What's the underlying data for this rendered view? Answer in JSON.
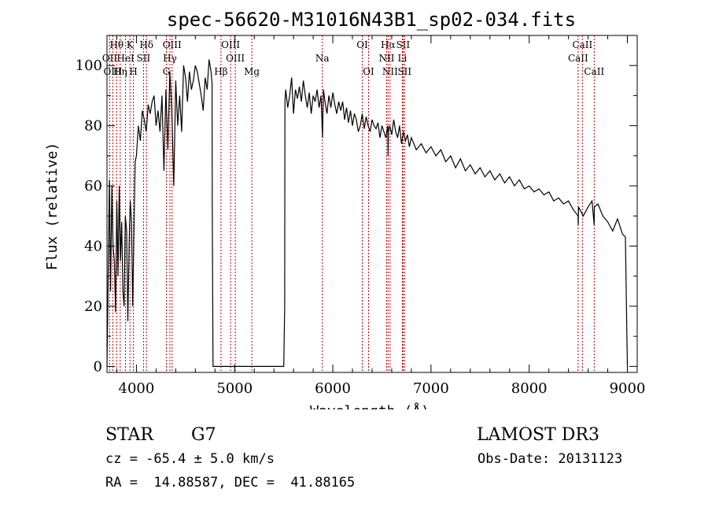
{
  "chart_data": {
    "type": "line",
    "title": "spec-56620-M31016N43B1_sp02-034.fits",
    "xlabel": "Wavelength (Å)",
    "ylabel": "Flux (relative)",
    "xlim": [
      3700,
      9100
    ],
    "ylim": [
      -2,
      110
    ],
    "x_ticks": [
      4000,
      5000,
      6000,
      7000,
      8000,
      9000
    ],
    "y_ticks": [
      0,
      20,
      40,
      60,
      80,
      100
    ],
    "series": [
      {
        "name": "flux",
        "x": [
          3700,
          3712,
          3725,
          3737,
          3750,
          3762,
          3775,
          3787,
          3800,
          3812,
          3825,
          3837,
          3850,
          3862,
          3875,
          3887,
          3900,
          3912,
          3925,
          3937,
          3950,
          3962,
          3975,
          3987,
          4000,
          4020,
          4040,
          4060,
          4080,
          4100,
          4120,
          4140,
          4160,
          4180,
          4200,
          4220,
          4240,
          4260,
          4280,
          4300,
          4320,
          4340,
          4360,
          4380,
          4400,
          4420,
          4440,
          4460,
          4480,
          4500,
          4520,
          4540,
          4560,
          4580,
          4600,
          4620,
          4640,
          4660,
          4680,
          4700,
          4720,
          4740,
          4760,
          4770,
          4772,
          4780,
          4800,
          4850,
          4900,
          5000,
          5100,
          5200,
          5300,
          5400,
          5500,
          5510,
          5512,
          5520,
          5540,
          5560,
          5580,
          5600,
          5620,
          5640,
          5660,
          5680,
          5700,
          5720,
          5740,
          5760,
          5780,
          5800,
          5820,
          5840,
          5860,
          5880,
          5895,
          5900,
          5905,
          5920,
          5940,
          5960,
          5980,
          6000,
          6020,
          6040,
          6060,
          6080,
          6100,
          6120,
          6140,
          6160,
          6180,
          6200,
          6220,
          6240,
          6260,
          6280,
          6300,
          6320,
          6340,
          6360,
          6380,
          6400,
          6420,
          6440,
          6460,
          6480,
          6500,
          6520,
          6540,
          6560,
          6563,
          6566,
          6580,
          6600,
          6620,
          6640,
          6660,
          6680,
          6700,
          6720,
          6740,
          6760,
          6780,
          6800,
          6850,
          6900,
          6950,
          7000,
          7050,
          7100,
          7150,
          7200,
          7250,
          7300,
          7350,
          7400,
          7450,
          7500,
          7550,
          7600,
          7650,
          7700,
          7750,
          7800,
          7850,
          7900,
          7950,
          8000,
          8050,
          8100,
          8150,
          8200,
          8250,
          8300,
          8350,
          8400,
          8450,
          8498,
          8500,
          8502,
          8550,
          8600,
          8640,
          8662,
          8664,
          8700,
          8750,
          8800,
          8850,
          8900,
          8950,
          8980,
          8995,
          9000,
          9003
        ],
        "values": [
          0,
          30,
          62,
          25,
          60,
          40,
          35,
          18,
          55,
          30,
          60,
          35,
          48,
          25,
          20,
          50,
          45,
          15,
          40,
          55,
          48,
          20,
          45,
          68,
          70,
          80,
          75,
          85,
          82,
          78,
          87,
          84,
          88,
          90,
          80,
          85,
          78,
          90,
          65,
          92,
          72,
          98,
          85,
          60,
          95,
          80,
          90,
          78,
          100,
          96,
          88,
          98,
          92,
          95,
          100,
          98,
          94,
          90,
          85,
          96,
          92,
          102,
          98,
          94,
          55,
          0,
          0,
          0,
          0,
          0,
          0,
          0,
          0,
          0,
          0,
          20,
          88,
          92,
          86,
          90,
          96,
          84,
          92,
          89,
          93,
          88,
          95,
          90,
          86,
          91,
          84,
          90,
          88,
          92,
          86,
          90,
          76,
          85,
          92,
          88,
          84,
          90,
          86,
          91,
          87,
          84,
          88,
          85,
          88,
          82,
          86,
          81,
          85,
          80,
          84,
          82,
          78,
          80,
          84,
          79,
          83,
          80,
          78,
          82,
          80,
          79,
          81,
          76,
          80,
          78,
          76,
          80,
          70,
          78,
          80,
          77,
          82,
          78,
          76,
          80,
          74,
          78,
          75,
          77,
          73,
          76,
          72,
          74,
          71,
          73,
          70,
          72,
          68,
          70,
          66,
          69,
          65,
          67,
          64,
          66,
          63,
          65,
          62,
          64,
          61,
          63,
          60,
          62,
          59,
          60,
          58,
          59,
          57,
          58,
          55,
          56,
          54,
          55,
          52,
          50,
          47,
          53,
          50,
          53,
          55,
          47,
          53,
          54,
          50,
          48,
          45,
          49,
          44,
          43,
          10,
          0,
          0
        ]
      }
    ],
    "line_markers": [
      {
        "label": "Hθ",
        "x": 3798,
        "row": 1
      },
      {
        "label": "K",
        "x": 3934,
        "row": 1
      },
      {
        "label": "Hδ",
        "x": 4102,
        "row": 1
      },
      {
        "label": "OIII",
        "x": 4363,
        "row": 1
      },
      {
        "label": "OIII",
        "x": 4959,
        "row": 1
      },
      {
        "label": "OI",
        "x": 6300,
        "row": 1
      },
      {
        "label": "Hα",
        "x": 6563,
        "row": 1
      },
      {
        "label": "SII",
        "x": 6716,
        "row": 1
      },
      {
        "label": "CaII",
        "x": 8542,
        "row": 1
      },
      {
        "label": "OII",
        "x": 3727,
        "row": 2
      },
      {
        "label": "HeI",
        "x": 3889,
        "row": 2
      },
      {
        "label": "SII",
        "x": 4072,
        "row": 2
      },
      {
        "label": "Hγ",
        "x": 4341,
        "row": 2
      },
      {
        "label": "OIII",
        "x": 5007,
        "row": 2
      },
      {
        "label": "Na",
        "x": 5893,
        "row": 2
      },
      {
        "label": "NII",
        "x": 6548,
        "row": 2
      },
      {
        "label": "Li",
        "x": 6708,
        "row": 2
      },
      {
        "label": "CaII",
        "x": 8498,
        "row": 2
      },
      {
        "label": "OIII",
        "x": 3760,
        "row": 3
      },
      {
        "label": "Hη",
        "x": 3835,
        "row": 3
      },
      {
        "label": "H",
        "x": 3969,
        "row": 3
      },
      {
        "label": "G",
        "x": 4305,
        "row": 3
      },
      {
        "label": "Hβ",
        "x": 4861,
        "row": 3
      },
      {
        "label": "Mg",
        "x": 5175,
        "row": 3
      },
      {
        "label": "OI",
        "x": 6364,
        "row": 3
      },
      {
        "label": "NII",
        "x": 6583,
        "row": 3
      },
      {
        "label": "SII",
        "x": 6731,
        "row": 3
      },
      {
        "label": "CaII",
        "x": 8662,
        "row": 3
      }
    ],
    "marker_color": "#cc0000"
  },
  "info": {
    "object_class": "STAR",
    "subclass": "G7",
    "survey": "LAMOST DR3",
    "redshift": "cz = -65.4 ± 5.0 km/s",
    "obs_date": "Obs-Date: 20131123",
    "coordinates": "RA =  14.88587, DEC =  41.88165"
  }
}
